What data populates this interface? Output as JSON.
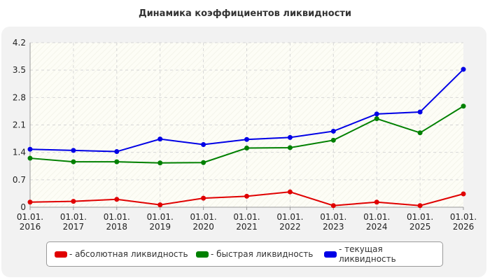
{
  "chart_data": {
    "type": "line",
    "title": "Динамика коэффициентов ликвидности",
    "categories": [
      "01.01.\n2016",
      "01.01.\n2017",
      "01.01.\n2018",
      "01.01.\n2019",
      "01.01.\n2020",
      "01.01.\n2021",
      "01.01.\n2022",
      "01.01.\n2023",
      "01.01.\n2024",
      "01.01.\n2025",
      "01.01.\n2026"
    ],
    "y_ticks": [
      "0",
      "0.7",
      "1.4",
      "2.1",
      "2.8",
      "3.5",
      "4.2"
    ],
    "ylim": [
      0,
      4.2
    ],
    "grid": true,
    "legend_position": "bottom",
    "series": [
      {
        "name": "- абсолютная ликвидность",
        "color": "#e00000",
        "values": [
          0.13,
          0.15,
          0.2,
          0.06,
          0.23,
          0.28,
          0.39,
          0.04,
          0.13,
          0.04,
          0.34
        ]
      },
      {
        "name": "- быстрая ликвидность",
        "color": "#008000",
        "values": [
          1.25,
          1.16,
          1.16,
          1.13,
          1.14,
          1.51,
          1.52,
          1.71,
          2.26,
          1.9,
          2.58
        ]
      },
      {
        "name": "- текущая ликвидность",
        "color": "#0000e6",
        "values": [
          1.48,
          1.45,
          1.42,
          1.74,
          1.6,
          1.73,
          1.78,
          1.94,
          2.38,
          2.43,
          3.52
        ]
      }
    ]
  }
}
